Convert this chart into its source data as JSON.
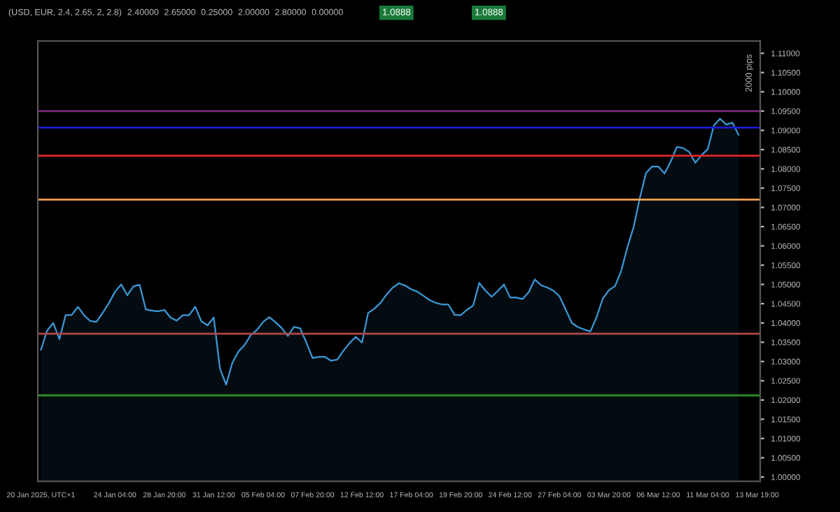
{
  "chart_data": {
    "type": "area",
    "categories": [
      "20 Jan 2025, UTC+1",
      null,
      null,
      null,
      null,
      null,
      null,
      null,
      null,
      null,
      null,
      null,
      "24 Jan 04:00",
      null,
      null,
      null,
      null,
      null,
      null,
      null,
      "28 Jan 20:00",
      null,
      null,
      null,
      null,
      null,
      null,
      null,
      "31 Jan 12:00",
      null,
      null,
      null,
      null,
      null,
      null,
      null,
      "05 Feb 04:00",
      null,
      null,
      null,
      null,
      null,
      null,
      null,
      "07 Feb 20:00",
      null,
      null,
      null,
      null,
      null,
      null,
      null,
      "12 Feb 12:00",
      null,
      null,
      null,
      null,
      null,
      null,
      null,
      "17 Feb 04:00",
      null,
      null,
      null,
      null,
      null,
      null,
      null,
      "19 Feb 20:00",
      null,
      null,
      null,
      null,
      null,
      null,
      null,
      "24 Feb 12:00",
      null,
      null,
      null,
      null,
      null,
      null,
      null,
      "27 Feb 04:00",
      null,
      null,
      null,
      null,
      null,
      null,
      null,
      "03 Mar 20:00",
      null,
      null,
      null,
      null,
      null,
      null,
      null,
      "06 Mar 12:00",
      null,
      null,
      null,
      null,
      null,
      null,
      null,
      "11 Mar 04:00",
      null,
      null,
      null,
      null,
      null,
      null,
      null,
      "13 Mar 19:00"
    ],
    "series": [
      {
        "color": "#3a9ad9",
        "values": [
          1.033,
          1.038,
          1.04,
          1.0358,
          1.042,
          1.0421,
          1.0442,
          1.042,
          1.0405,
          1.0403,
          1.0426,
          1.0451,
          1.0481,
          1.05,
          1.0472,
          1.0495,
          1.0499,
          1.0435,
          1.0432,
          1.043,
          1.0434,
          1.0414,
          1.0406,
          1.042,
          1.042,
          1.0442,
          1.0404,
          1.0394,
          1.0414,
          1.0282,
          1.024,
          1.0296,
          1.0326,
          1.0343,
          1.0369,
          1.0382,
          1.0403,
          1.0415,
          1.0402,
          1.0387,
          1.0366,
          1.039,
          1.0386,
          1.0349,
          1.0309,
          1.0312,
          1.0312,
          1.0302,
          1.0305,
          1.0328,
          1.0348,
          1.0364,
          1.0349,
          1.0426,
          1.0437,
          1.0452,
          1.0474,
          1.0492,
          1.0503,
          1.0497,
          1.0487,
          1.0481,
          1.047,
          1.0459,
          1.0452,
          1.0448,
          1.0448,
          1.0421,
          1.042,
          1.0434,
          1.0445,
          1.0504,
          1.0484,
          1.0468,
          1.0483,
          1.05,
          1.0466,
          1.0466,
          1.0462,
          1.048,
          1.0513,
          1.0498,
          1.0492,
          1.0484,
          1.0469,
          1.0435,
          1.04,
          1.0389,
          1.0383,
          1.0378,
          1.0415,
          1.0463,
          1.0485,
          1.0496,
          1.0536,
          1.0597,
          1.0649,
          1.0724,
          1.0789,
          1.0806,
          1.0806,
          1.0788,
          1.0819,
          1.0857,
          1.0854,
          1.0844,
          1.0816,
          1.0836,
          1.0851,
          1.0913,
          1.093,
          1.0915,
          1.092,
          1.0888,
          null,
          null,
          null
        ]
      }
    ],
    "ylim": [
      0.9989,
      1.1132
    ],
    "yticks": [
      {
        "value": 1.0,
        "label": "1.00000"
      },
      {
        "value": 1.005,
        "label": "1.00500"
      },
      {
        "value": 1.01,
        "label": "1.01000"
      },
      {
        "value": 1.015,
        "label": "1.01500"
      },
      {
        "value": 1.02,
        "label": "1.02000"
      },
      {
        "value": 1.025,
        "label": "1.02500"
      },
      {
        "value": 1.03,
        "label": "1.03000"
      },
      {
        "value": 1.035,
        "label": "1.03500"
      },
      {
        "value": 1.04,
        "label": "1.04000"
      },
      {
        "value": 1.045,
        "label": "1.04500"
      },
      {
        "value": 1.05,
        "label": "1.05000"
      },
      {
        "value": 1.055,
        "label": "1.05500"
      },
      {
        "value": 1.06,
        "label": "1.06000"
      },
      {
        "value": 1.065,
        "label": "1.06500"
      },
      {
        "value": 1.07,
        "label": "1.07000"
      },
      {
        "value": 1.075,
        "label": "1.07500"
      },
      {
        "value": 1.08,
        "label": "1.08000"
      },
      {
        "value": 1.085,
        "label": "1.08500"
      },
      {
        "value": 1.09,
        "label": "1.09000"
      },
      {
        "value": 1.095,
        "label": "1.09500"
      },
      {
        "value": 1.1,
        "label": "1.10000"
      },
      {
        "value": 1.105,
        "label": "1.10500"
      },
      {
        "value": 1.11,
        "label": "1.11000"
      }
    ],
    "ref_lines": [
      {
        "axis": "y",
        "value": 1.095,
        "color": "#7a2a7a"
      },
      {
        "axis": "y",
        "value": 1.0907,
        "color": "#1a1ad0"
      },
      {
        "axis": "y",
        "value": 1.0834,
        "color": "#e02424"
      },
      {
        "axis": "y",
        "value": 1.072,
        "color": "#f0a050"
      },
      {
        "axis": "y",
        "value": 1.0372,
        "color": "#b04848"
      },
      {
        "axis": "y",
        "value": 1.0212,
        "color": "#2a8a2a"
      }
    ],
    "annotations": [
      "(USD, EUR, 2.4, 2.65, 2, 2.8)",
      "2.40000",
      "2.65000",
      "0.25000",
      "2.00000",
      "2.80000",
      "0.00000",
      "1.0888",
      "1.0888",
      "2000 pips"
    ],
    "grid": false,
    "legend": false
  }
}
